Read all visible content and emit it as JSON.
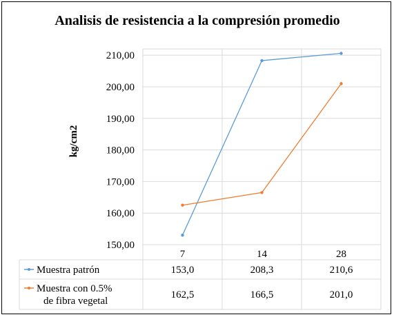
{
  "chart_data": {
    "type": "line",
    "title": "Analisis de resistencia a la compresión promedio",
    "ylabel": "kg/cm2",
    "xlabel": "",
    "categories": [
      "7",
      "14",
      "28"
    ],
    "yticks": [
      "150,00",
      "160,00",
      "170,00",
      "180,00",
      "190,00",
      "200,00",
      "210,00"
    ],
    "ylim": [
      150,
      212
    ],
    "grid": true,
    "legend": "data table below chart",
    "series": [
      {
        "name_lines": [
          "Muestra patrón"
        ],
        "color": "#5B9BD5",
        "values": [
          153.0,
          208.3,
          210.6
        ],
        "labels": [
          "153,0",
          "208,3",
          "210,6"
        ]
      },
      {
        "name_lines": [
          "Muestra con 0.5%",
          "de fibra vegetal"
        ],
        "color": "#ED7D31",
        "values": [
          162.5,
          166.5,
          201.0
        ],
        "labels": [
          "162,5",
          "166,5",
          "201,0"
        ]
      }
    ]
  }
}
